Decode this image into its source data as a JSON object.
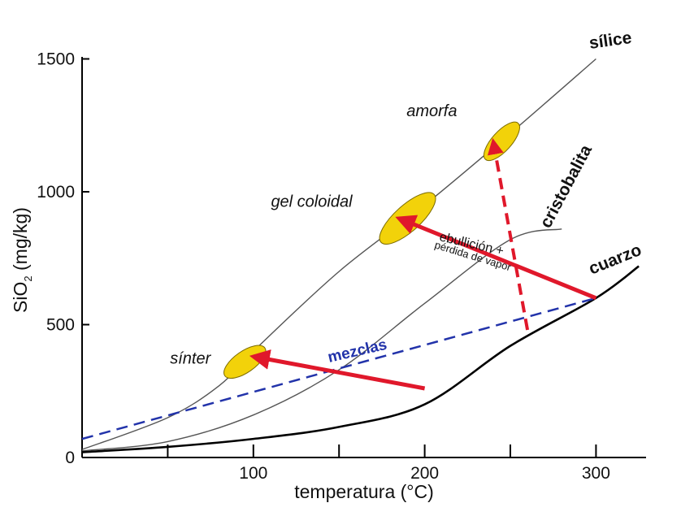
{
  "chart_data": {
    "type": "line",
    "title": "",
    "xlabel": "temperatura (°C)",
    "ylabel_main": "SiO",
    "ylabel_sub": "2",
    "ylabel_tail": " (mg/kg)",
    "xlim": [
      0,
      330
    ],
    "ylim": [
      0,
      1500
    ],
    "xticks": [
      100,
      200,
      300
    ],
    "xticks_minor": [
      50,
      150,
      250
    ],
    "yticks": [
      0,
      500,
      1000,
      1500
    ],
    "series": [
      {
        "name": "sílice",
        "x": [
          0,
          50,
          80,
          100,
          150,
          200,
          250,
          300
        ],
        "y": [
          30,
          150,
          270,
          400,
          700,
          950,
          1220,
          1500
        ]
      },
      {
        "name": "cristobalita",
        "x": [
          0,
          50,
          100,
          150,
          200,
          250,
          280
        ],
        "y": [
          25,
          60,
          160,
          330,
          580,
          820,
          860
        ]
      },
      {
        "name": "cuarzo",
        "x": [
          0,
          50,
          100,
          150,
          200,
          250,
          300,
          325
        ],
        "y": [
          20,
          40,
          70,
          115,
          200,
          420,
          600,
          720
        ]
      }
    ],
    "mix_line": {
      "label": "mezclas",
      "x": [
        0,
        300
      ],
      "y": [
        70,
        600
      ]
    },
    "regions": [
      {
        "label": "sínter",
        "x": 95,
        "y": 360
      },
      {
        "label": "gel coloidal",
        "x": 190,
        "y": 900
      },
      {
        "label": "amorfa",
        "x": 245,
        "y": 1190
      }
    ],
    "arrows": [
      {
        "from": [
          200,
          260
        ],
        "to": [
          100,
          380
        ],
        "style": "solid"
      },
      {
        "from": [
          300,
          600
        ],
        "to": [
          185,
          900
        ],
        "style": "solid"
      },
      {
        "from": [
          260,
          480
        ],
        "to": [
          240,
          1190
        ],
        "style": "dashed"
      }
    ],
    "annotation": {
      "line1": "ebullición +",
      "line2": "pérdida de vapor"
    }
  },
  "colors": {
    "curve": "#555555",
    "quartz": "#000000",
    "mix": "#2233aa",
    "arrow": "#e0182b",
    "ellipse": "#f2d20a",
    "ellipse_stroke": "#7a6a00"
  }
}
